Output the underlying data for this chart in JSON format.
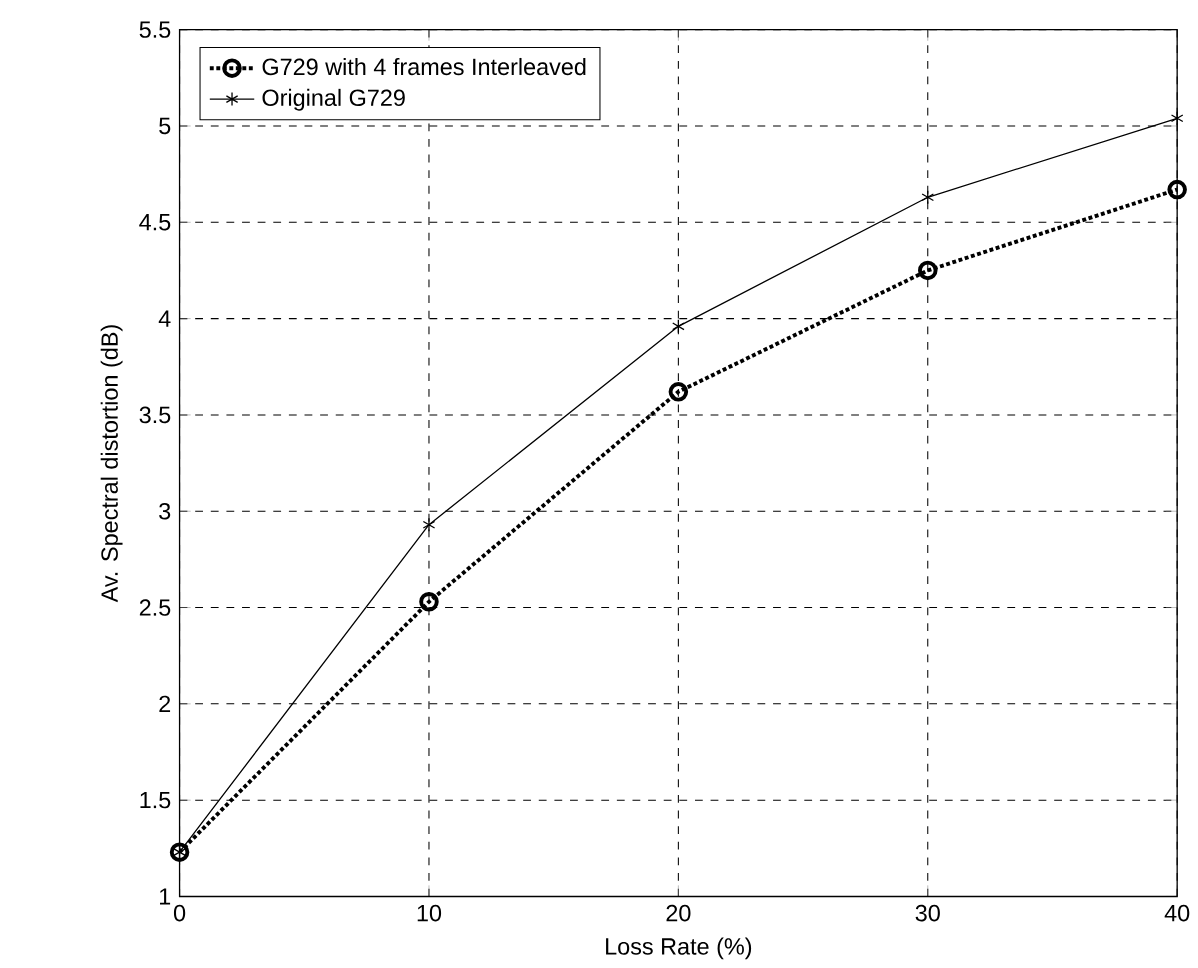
{
  "chart_data": {
    "type": "line",
    "xlabel": "Loss Rate (%)",
    "ylabel": "Av. Spectral distortion (dB)",
    "x": [
      0,
      10,
      20,
      30,
      40
    ],
    "series": [
      {
        "name": "G729 with  4 frames Interleaved",
        "color": "#000000",
        "values": [
          1.23,
          2.53,
          3.62,
          4.25,
          4.67
        ],
        "marker": "circle",
        "line_style": "dotted"
      },
      {
        "name": "Original G729",
        "color": "#000000",
        "values": [
          1.23,
          2.93,
          3.96,
          4.63,
          5.04
        ],
        "marker": "cross",
        "line_style": "solid"
      }
    ],
    "xlim": [
      0,
      40
    ],
    "ylim": [
      1,
      5.5
    ],
    "xticks": [
      0,
      10,
      20,
      30,
      40
    ],
    "yticks": [
      1,
      1.5,
      2,
      2.5,
      3,
      3.5,
      4,
      4.5,
      5,
      5.5
    ],
    "grid": true,
    "legend": "top left"
  }
}
